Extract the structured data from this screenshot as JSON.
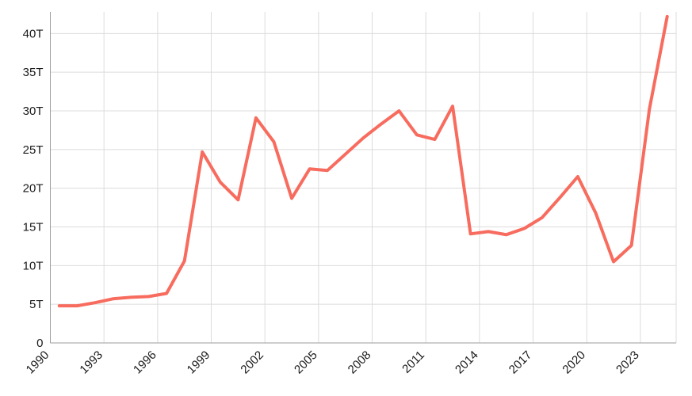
{
  "chart_data": {
    "type": "line",
    "title": "",
    "xlabel": "",
    "ylabel": "",
    "unit_suffix": "T",
    "x": [
      1990,
      1991,
      1992,
      1993,
      1994,
      1995,
      1996,
      1997,
      1998,
      1999,
      2000,
      2001,
      2002,
      2003,
      2004,
      2005,
      2006,
      2007,
      2008,
      2009,
      2010,
      2011,
      2012,
      2013,
      2014,
      2015,
      2016,
      2017,
      2018,
      2019,
      2020,
      2021,
      2022,
      2023,
      2024
    ],
    "series": [
      {
        "name": "value",
        "values": [
          4.8,
          4.8,
          5.2,
          5.7,
          5.9,
          6.0,
          6.4,
          10.6,
          24.7,
          20.8,
          18.5,
          29.1,
          26.0,
          18.7,
          22.5,
          22.3,
          24.4,
          26.5,
          28.3,
          30.0,
          26.9,
          26.3,
          30.6,
          14.1,
          14.4,
          14.0,
          14.8,
          16.2,
          18.8,
          21.5,
          16.8,
          10.5,
          12.6,
          30.2,
          42.2
        ]
      }
    ],
    "x_ticks": [
      1990,
      1993,
      1996,
      1999,
      2002,
      2005,
      2008,
      2011,
      2014,
      2017,
      2020,
      2023
    ],
    "y_ticks": [
      {
        "value": 0,
        "label": "0"
      },
      {
        "value": 5,
        "label": "5T"
      },
      {
        "value": 10,
        "label": "10T"
      },
      {
        "value": 15,
        "label": "15T"
      },
      {
        "value": 20,
        "label": "20T"
      },
      {
        "value": 25,
        "label": "25T"
      },
      {
        "value": 30,
        "label": "30T"
      },
      {
        "value": 35,
        "label": "35T"
      },
      {
        "value": 40,
        "label": "40T"
      }
    ],
    "xlim": [
      1990,
      2025
    ],
    "ylim": [
      0,
      42.8
    ],
    "point_offset_years": 0.5,
    "grid": true,
    "legend": "none",
    "colors": {
      "line": "#F76C5E",
      "grid": "#DCDCDC",
      "axis": "#9E9E9E",
      "text": "#1A1A1A",
      "background": "#FFFFFF"
    }
  }
}
